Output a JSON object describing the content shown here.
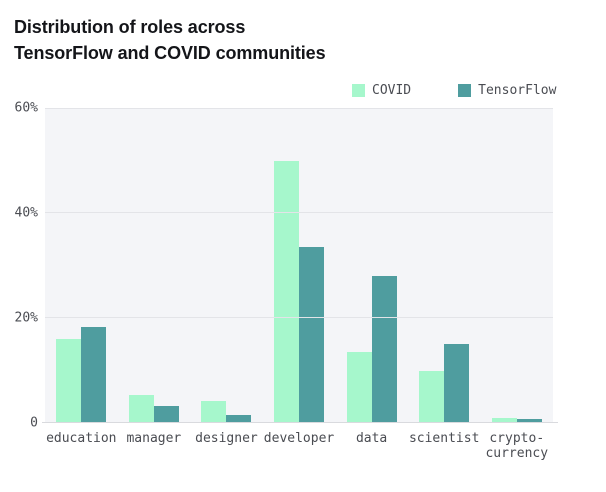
{
  "title": {
    "line1": "Distribution of roles across",
    "line2": "TensorFlow and COVID communities"
  },
  "chart_data": {
    "type": "bar",
    "title": "Distribution of roles across TensorFlow and COVID communities",
    "categories": [
      "education",
      "manager",
      "designer",
      "developer",
      "data",
      "scientist",
      "crypto-currency"
    ],
    "series": [
      {
        "name": "COVID",
        "color": "#a6f7cc",
        "values": [
          16.0,
          5.3,
          4.2,
          50.0,
          13.5,
          10.0,
          1.0
        ]
      },
      {
        "name": "TensorFlow",
        "color": "#4f9d9f",
        "values": [
          18.3,
          3.3,
          1.5,
          33.5,
          28.0,
          15.0,
          0.8
        ]
      }
    ],
    "xlabel": "",
    "ylabel": "",
    "ylim": [
      0,
      60
    ],
    "y_ticks": [
      {
        "value": 60,
        "label": "60%"
      },
      {
        "value": 40,
        "label": "40%"
      },
      {
        "value": 20,
        "label": "20%"
      },
      {
        "value": 0,
        "label": "0"
      }
    ],
    "grid": true,
    "legend_position": "top-right",
    "plot_background": "#f4f5f8",
    "gridline_color": "#e3e4e8"
  }
}
